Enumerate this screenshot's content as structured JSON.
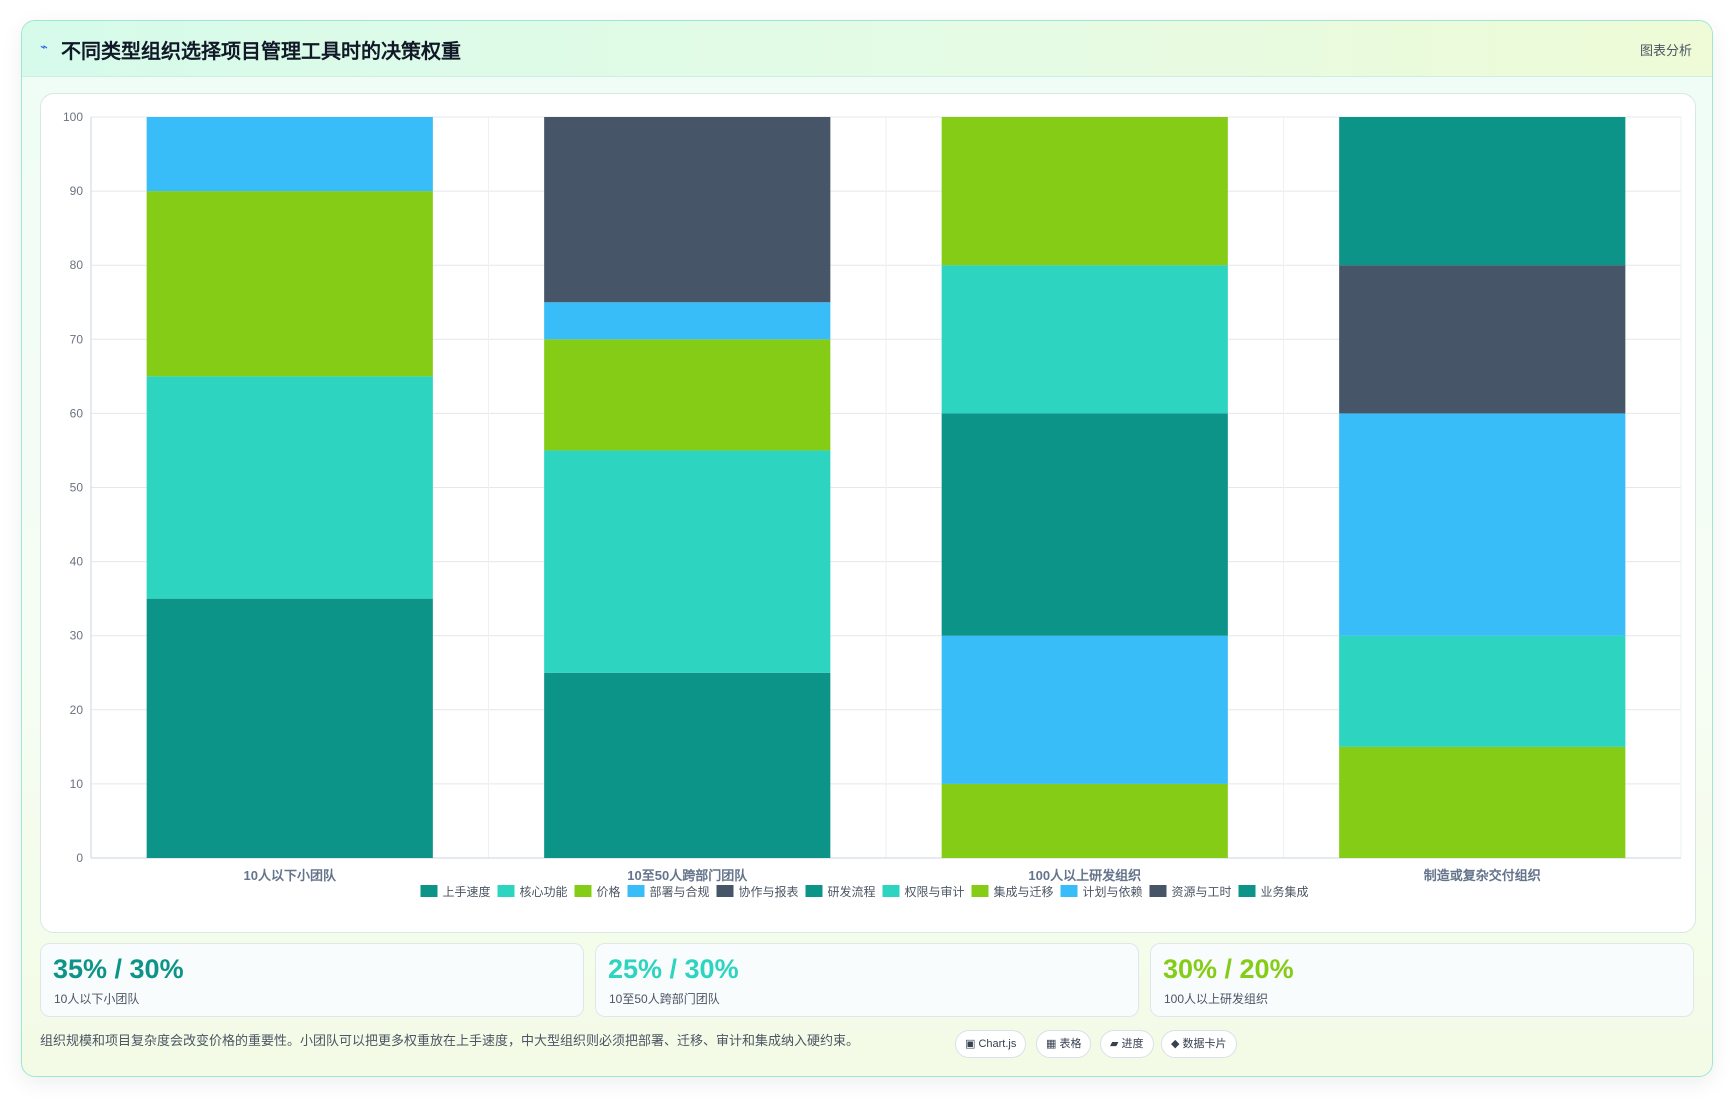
{
  "header": {
    "icon": "bolt-icon",
    "title": "不同类型组织选择项目管理工具时的决策权重",
    "tag": "图表分析"
  },
  "chart_data": {
    "type": "bar",
    "stacked": true,
    "categories": [
      "10人以下小团队",
      "10至50人跨部门团队",
      "100人以上研发组织",
      "制造或复杂交付组织"
    ],
    "ylim": [
      0,
      100
    ],
    "yticks": [
      0,
      10,
      20,
      30,
      40,
      50,
      60,
      70,
      80,
      90,
      100
    ],
    "grid": true,
    "legend_position": "bottom",
    "series": [
      {
        "name": "上手速度",
        "color": "#0d9488",
        "values": [
          35,
          25,
          0,
          0
        ]
      },
      {
        "name": "核心功能",
        "color": "#2dd4bf",
        "values": [
          30,
          30,
          0,
          0
        ]
      },
      {
        "name": "价格",
        "color": "#84cc16",
        "values": [
          25,
          15,
          0,
          0
        ]
      },
      {
        "name": "部署与合规",
        "color": "#38bdf8",
        "values": [
          10,
          5,
          0,
          0
        ]
      },
      {
        "name": "协作与报表",
        "color": "#475569",
        "values": [
          0,
          25,
          0,
          0
        ]
      },
      {
        "name": "研发流程",
        "color": "#0d9488",
        "values": [
          0,
          0,
          30,
          0
        ]
      },
      {
        "name": "权限与审计",
        "color": "#2dd4bf",
        "values": [
          0,
          0,
          20,
          15
        ]
      },
      {
        "name": "集成与迁移",
        "color": "#84cc16",
        "values": [
          0,
          0,
          30,
          15
        ]
      },
      {
        "name": "计划与依赖",
        "color": "#38bdf8",
        "values": [
          0,
          0,
          20,
          30
        ]
      },
      {
        "name": "资源与工时",
        "color": "#475569",
        "values": [
          0,
          0,
          0,
          20
        ]
      },
      {
        "name": "业务集成",
        "color": "#0d9488",
        "values": [
          0,
          0,
          0,
          20
        ]
      }
    ],
    "stack_order": [
      [
        "上手速度",
        "核心功能",
        "价格",
        "部署与合规"
      ],
      [
        "上手速度",
        "核心功能",
        "价格",
        "部署与合规",
        "协作与报表"
      ],
      [
        "集成与迁移",
        "计划与依赖",
        "研发流程",
        "权限与审计",
        "集成与迁移"
      ],
      [
        "集成与迁移",
        "权限与审计",
        "计划与依赖",
        "资源与工时",
        "业务集成"
      ]
    ],
    "stack_values": [
      [
        35,
        30,
        25,
        10
      ],
      [
        25,
        30,
        15,
        5,
        25
      ],
      [
        10,
        20,
        30,
        20,
        20
      ],
      [
        15,
        15,
        30,
        20,
        20
      ]
    ]
  },
  "kpis": [
    {
      "value": "35% / 30%",
      "label": "10人以下小团队",
      "color": "#0d9488"
    },
    {
      "value": "25% / 30%",
      "label": "10至50人跨部门团队",
      "color": "#2dd4bf"
    },
    {
      "value": "30% / 20%",
      "label": "100人以上研发组织",
      "color": "#84cc16"
    }
  ],
  "footer": {
    "note": "组织规模和项目复杂度会改变价格的重要性。小团队可以把更多权重放在上手速度，中大型组织则必须把部署、迁移、审计和集成纳入硬约束。",
    "chips": [
      {
        "icon": "window-icon",
        "glyph": "▣",
        "label": "Chart.js"
      },
      {
        "icon": "table-icon",
        "glyph": "▦",
        "label": "表格"
      },
      {
        "icon": "progress-icon",
        "glyph": "▰",
        "label": "进度"
      },
      {
        "icon": "diamond-icon",
        "glyph": "◆",
        "label": "数据卡片"
      }
    ]
  }
}
